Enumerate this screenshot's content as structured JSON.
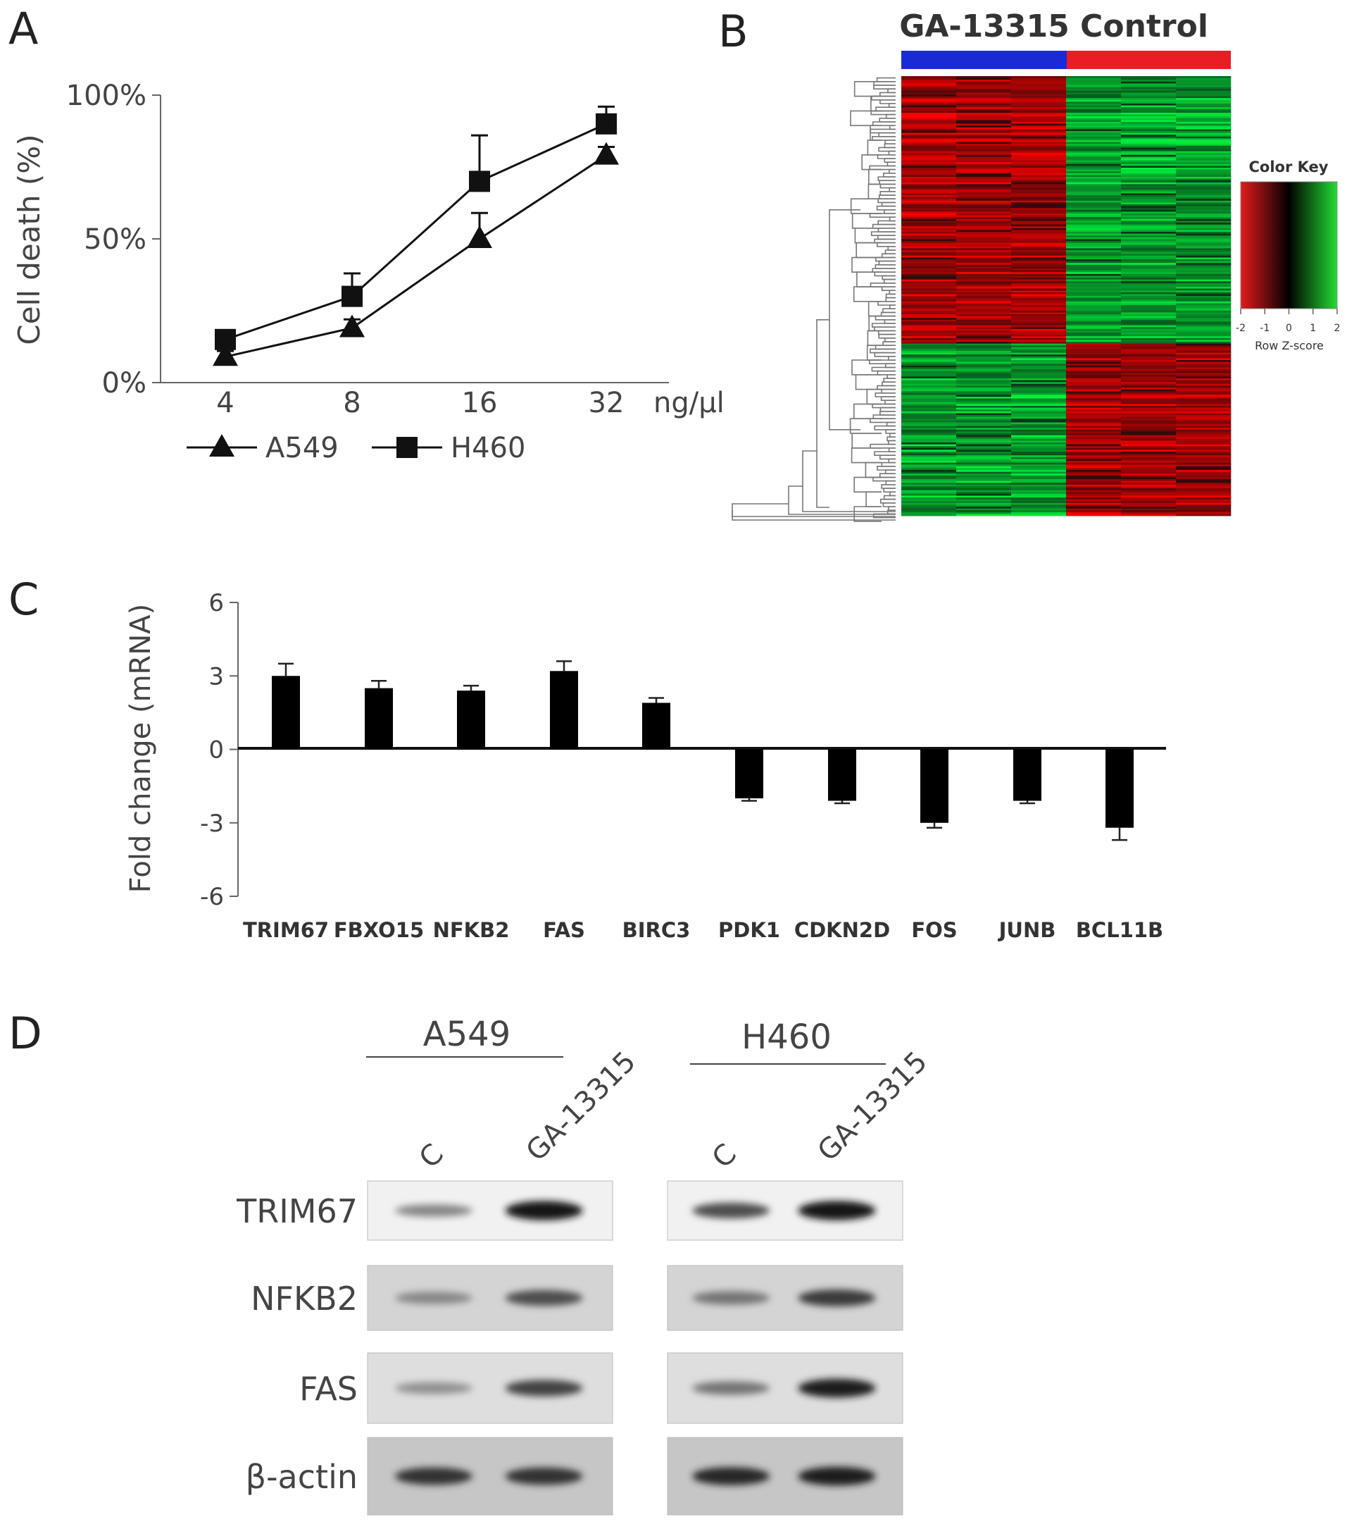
{
  "panels": {
    "a": "A",
    "b": "B",
    "c": "C",
    "d": "D"
  },
  "chart_data": [
    {
      "type": "line",
      "panel": "A",
      "ylabel": "Cell death (%)",
      "xlabel": "ng/μl",
      "categories": [
        "4",
        "8",
        "16",
        "32"
      ],
      "y_ticks": [
        "0%",
        "50%",
        "100%"
      ],
      "ylim": [
        0,
        100
      ],
      "series": [
        {
          "name": "A549",
          "marker": "triangle",
          "values": [
            9,
            19,
            50,
            79
          ],
          "errors": [
            2,
            3,
            9,
            3
          ]
        },
        {
          "name": "H460",
          "marker": "square",
          "values": [
            15,
            30,
            70,
            90
          ],
          "errors": [
            3,
            8,
            16,
            6
          ]
        }
      ],
      "legend": "bottom"
    },
    {
      "type": "heatmap",
      "panel": "B",
      "groups": [
        "GA-13315",
        "Control"
      ],
      "group_colors": [
        "#1a2bd6",
        "#ea1c24"
      ],
      "columns_per_group": 3,
      "color_key": {
        "title": "Color Key",
        "ticks": [
          "-2",
          "-1",
          "0",
          "1",
          "2"
        ],
        "label": "Row Z-score",
        "colors": [
          "#e41a1c",
          "#000000",
          "#22dd33"
        ]
      }
    },
    {
      "type": "bar",
      "panel": "C",
      "ylabel": "Fold change (mRNA)",
      "y_ticks": [
        "6",
        "3",
        "0",
        "-3",
        "-6"
      ],
      "ylim": [
        -6,
        6
      ],
      "categories": [
        "TRIM67",
        "FBXO15",
        "NFKB2",
        "FAS",
        "BIRC3",
        "PDK1",
        "CDKN2D",
        "FOS",
        "JUNB",
        "BCL11B"
      ],
      "values": [
        3.0,
        2.5,
        2.4,
        3.2,
        1.9,
        -2.0,
        -2.1,
        -3.0,
        -2.1,
        -3.2
      ],
      "errors": [
        0.5,
        0.3,
        0.2,
        0.4,
        0.2,
        0.1,
        0.1,
        0.2,
        0.1,
        0.5
      ]
    }
  ],
  "blot": {
    "groups": [
      {
        "name": "A549",
        "lanes": [
          "C",
          "GA-13315"
        ]
      },
      {
        "name": "H460",
        "lanes": [
          "C",
          "GA-13315"
        ]
      }
    ],
    "rows": [
      "TRIM67",
      "NFKB2",
      "FAS",
      "β-actin"
    ]
  }
}
